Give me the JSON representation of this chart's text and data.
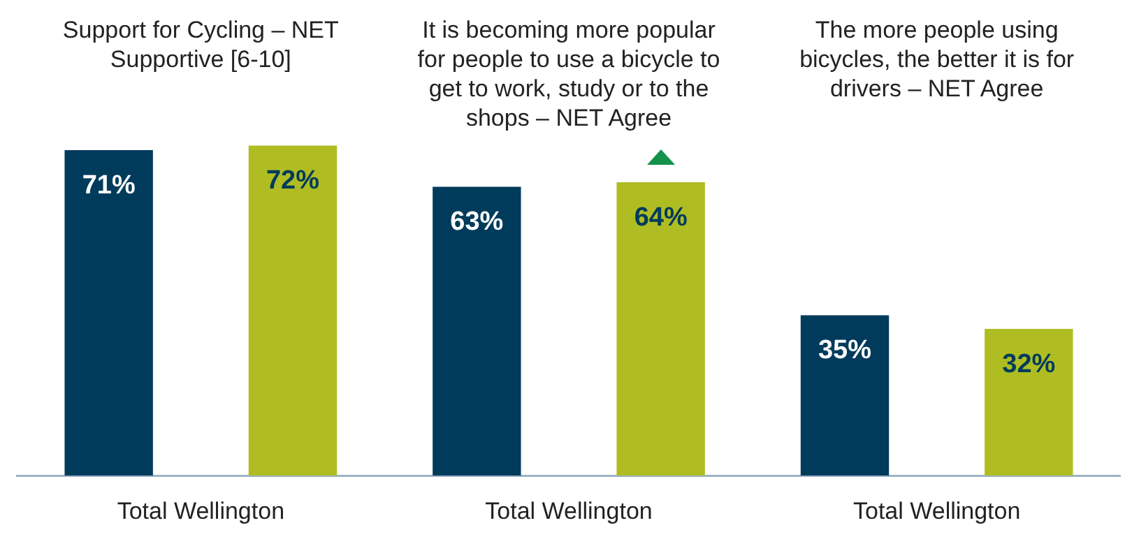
{
  "chart_data": {
    "type": "bar",
    "categories": [
      "Total Wellington",
      "Total Wellington",
      "Total Wellington"
    ],
    "series": [
      {
        "color": "#003b5c",
        "values": [
          71,
          63,
          35
        ],
        "value_labels": [
          "71%",
          "63%",
          "35%"
        ]
      },
      {
        "color": "#afbd22",
        "values": [
          72,
          64,
          32
        ],
        "value_labels": [
          "72%",
          "64%",
          "32%"
        ]
      }
    ],
    "annotations": [
      "Support for Cycling – NET Supportive [6-10]",
      "It is becoming more popular for people to use a bicycle to get to work, study or to the shops – NET Agree",
      "The more people using bicycles, the better it is for drivers – NET Agree"
    ],
    "legend": false,
    "grid": false
  }
}
